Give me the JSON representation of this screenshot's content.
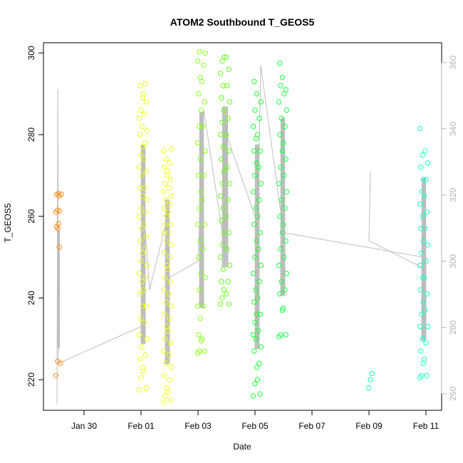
{
  "chart_data": {
    "type": "scatter",
    "title": "ATOM2 Southbound T_GEOS5",
    "xlabel": "Date",
    "ylabel": "T_GEOS5",
    "x_ticks": [
      {
        "label": "Jan 30",
        "day": 30
      },
      {
        "label": "Feb 01",
        "day": 32
      },
      {
        "label": "Feb 03",
        "day": 34
      },
      {
        "label": "Feb 05",
        "day": 36
      },
      {
        "label": "Feb 07",
        "day": 38
      },
      {
        "label": "Feb 09",
        "day": 40
      },
      {
        "label": "Feb 11",
        "day": 42
      }
    ],
    "y_ticks": [
      220,
      240,
      260,
      280,
      300
    ],
    "y2_ticks": [
      260,
      280,
      300,
      320,
      340,
      360
    ],
    "ylim": [
      212.5,
      302.5
    ],
    "y2lim": [
      255,
      366
    ],
    "groups": [
      {
        "color": "#ff8c1a",
        "x": [
          29.07,
          29.14
        ],
        "y": [
          [
            221,
            224.5,
            252.5,
            257.5,
            258.2,
            261,
            261.5,
            265,
            265.3,
            265.6
          ],
          [
            224,
            257,
            261.3,
            265.4
          ]
        ]
      },
      {
        "color": "#e6ff1a",
        "x": [
          32.0,
          32.15
        ],
        "y": [
          [
            217.5,
            220.5,
            223,
            225,
            228,
            231,
            235,
            238,
            241,
            244,
            246,
            249,
            251,
            254,
            257,
            260,
            262,
            265,
            267,
            270,
            272,
            275,
            277,
            280,
            282,
            284,
            286,
            289,
            292
          ],
          [
            218,
            222,
            226,
            230,
            234,
            238,
            242,
            245,
            248,
            252,
            255,
            258,
            261,
            264,
            267,
            271,
            274,
            278,
            281,
            285,
            288,
            290,
            292.5
          ]
        ]
      },
      {
        "color": "#f2ff1a",
        "x": [
          32.85,
          33.0
        ],
        "y": [
          [
            214.5,
            216,
            218,
            221,
            224,
            227,
            230,
            233,
            236,
            239,
            242,
            245,
            248,
            251,
            254,
            256,
            258,
            260,
            262,
            264,
            266,
            268,
            270,
            272,
            274,
            276
          ],
          [
            215,
            217,
            220,
            223,
            226,
            229,
            232,
            235,
            238,
            241,
            244,
            247,
            250,
            253,
            256,
            258,
            261,
            263,
            265,
            267,
            269,
            271,
            273,
            276.5
          ]
        ]
      },
      {
        "color": "#8cff1a",
        "x": [
          34.05,
          34.2
        ],
        "y": [
          [
            226.5,
            227,
            229.5,
            231,
            235,
            238,
            242,
            246,
            250,
            254,
            258,
            262,
            266,
            270,
            274,
            278,
            282,
            286,
            290,
            294,
            298,
            300.3
          ],
          [
            227,
            230,
            238,
            245,
            252,
            258,
            264,
            270,
            276,
            282,
            288,
            293,
            297,
            300
          ]
        ]
      },
      {
        "color": "#66ff1a",
        "x": [
          34.85,
          35.05
        ],
        "y": [
          [
            238.5,
            240,
            242,
            244,
            247,
            250,
            253,
            256,
            259,
            262,
            265,
            268,
            271,
            274,
            277,
            280,
            283,
            286,
            289,
            292,
            295,
            298,
            299
          ],
          [
            238.5,
            241,
            244,
            248,
            252,
            256,
            260,
            264,
            268,
            272,
            276,
            280,
            284,
            288,
            292,
            296,
            299
          ]
        ]
      },
      {
        "color": "#1aff33",
        "x": [
          36.0,
          36.15
        ],
        "y": [
          [
            216,
            219,
            223,
            227,
            230,
            231,
            234,
            236,
            239,
            242,
            246,
            250,
            254,
            258,
            262,
            266,
            270,
            273,
            276,
            279,
            282,
            286,
            290,
            293
          ],
          [
            216.5,
            220,
            224,
            228,
            232,
            236,
            240,
            244,
            248,
            252,
            256,
            260,
            264,
            268,
            272,
            276,
            280,
            284,
            288
          ]
        ]
      },
      {
        "color": "#1aff4d",
        "x": [
          36.9,
          37.05
        ],
        "y": [
          [
            230.5,
            231,
            237,
            241,
            244,
            248,
            252,
            256,
            260,
            264,
            268,
            272,
            276,
            280,
            284,
            288,
            292,
            294,
            297.5
          ],
          [
            231,
            237.5,
            242,
            246,
            250,
            254,
            258,
            262,
            266,
            270,
            274,
            278,
            282,
            286,
            290,
            291
          ]
        ]
      },
      {
        "color": "#1affb3",
        "x": [
          40.05
        ],
        "y": [
          [
            218,
            220,
            221.5
          ]
        ]
      },
      {
        "color": "#1affc8",
        "x": [
          41.85,
          42.0
        ],
        "y": [
          [
            220.5,
            221,
            224,
            227,
            230,
            233,
            236,
            239,
            242,
            245,
            248,
            251,
            254,
            257,
            260,
            263,
            266,
            269,
            272,
            275,
            281.5
          ],
          [
            221,
            225,
            229,
            233,
            237,
            241,
            245,
            249,
            253,
            257,
            261,
            265,
            269,
            273,
            276
          ]
        ]
      }
    ],
    "track": {
      "x": [
        29.05,
        29.08,
        29.1,
        32.0,
        32.1,
        32.3,
        32.9,
        33.0,
        34.0,
        34.2,
        34.9,
        35.0,
        36.1,
        36.2,
        37.0,
        41.9,
        42.0,
        40.0,
        40.05
      ],
      "y": [
        214,
        291,
        224,
        233,
        261,
        242,
        259,
        245,
        249,
        286,
        254,
        280,
        258,
        297,
        256,
        250,
        247,
        254,
        271
      ]
    }
  }
}
